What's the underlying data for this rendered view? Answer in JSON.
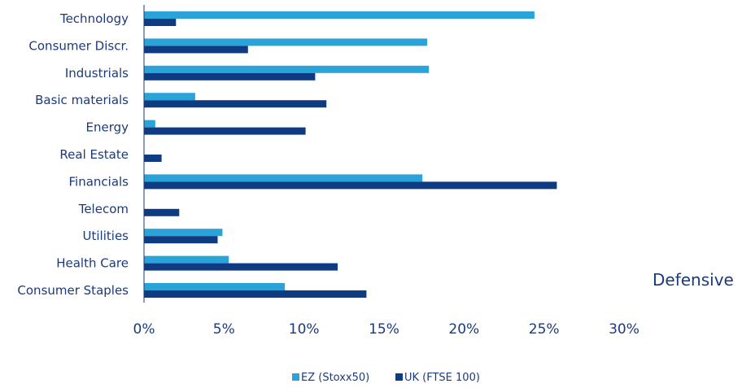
{
  "chart_data": {
    "type": "bar",
    "orientation": "horizontal",
    "categories": [
      "Technology",
      "Consumer Discr.",
      "Industrials",
      "Basic materials",
      "Energy",
      "Real Estate",
      "Financials",
      "Telecom",
      "Utilities",
      "Health Care",
      "Consumer Staples"
    ],
    "series": [
      {
        "name": "EZ (Stoxx50)",
        "color": "#2aa3d9",
        "values": [
          24.4,
          17.7,
          17.8,
          3.2,
          0.7,
          0,
          17.4,
          0,
          4.9,
          5.3,
          8.8
        ]
      },
      {
        "name": "UK (FTSE 100)",
        "color": "#0f3b82",
        "values": [
          2.0,
          6.5,
          10.7,
          11.4,
          10.1,
          1.1,
          25.8,
          2.2,
          4.6,
          12.1,
          13.9
        ]
      }
    ],
    "xlim": [
      0,
      30
    ],
    "xticks": [
      "0%",
      "5%",
      "10%",
      "15%",
      "20%",
      "25%",
      "30%"
    ],
    "xtick_values": [
      0,
      5,
      10,
      15,
      20,
      25,
      30
    ],
    "grid": false,
    "legend_position": "bottom-center",
    "annotations": [
      "Defensive"
    ]
  }
}
